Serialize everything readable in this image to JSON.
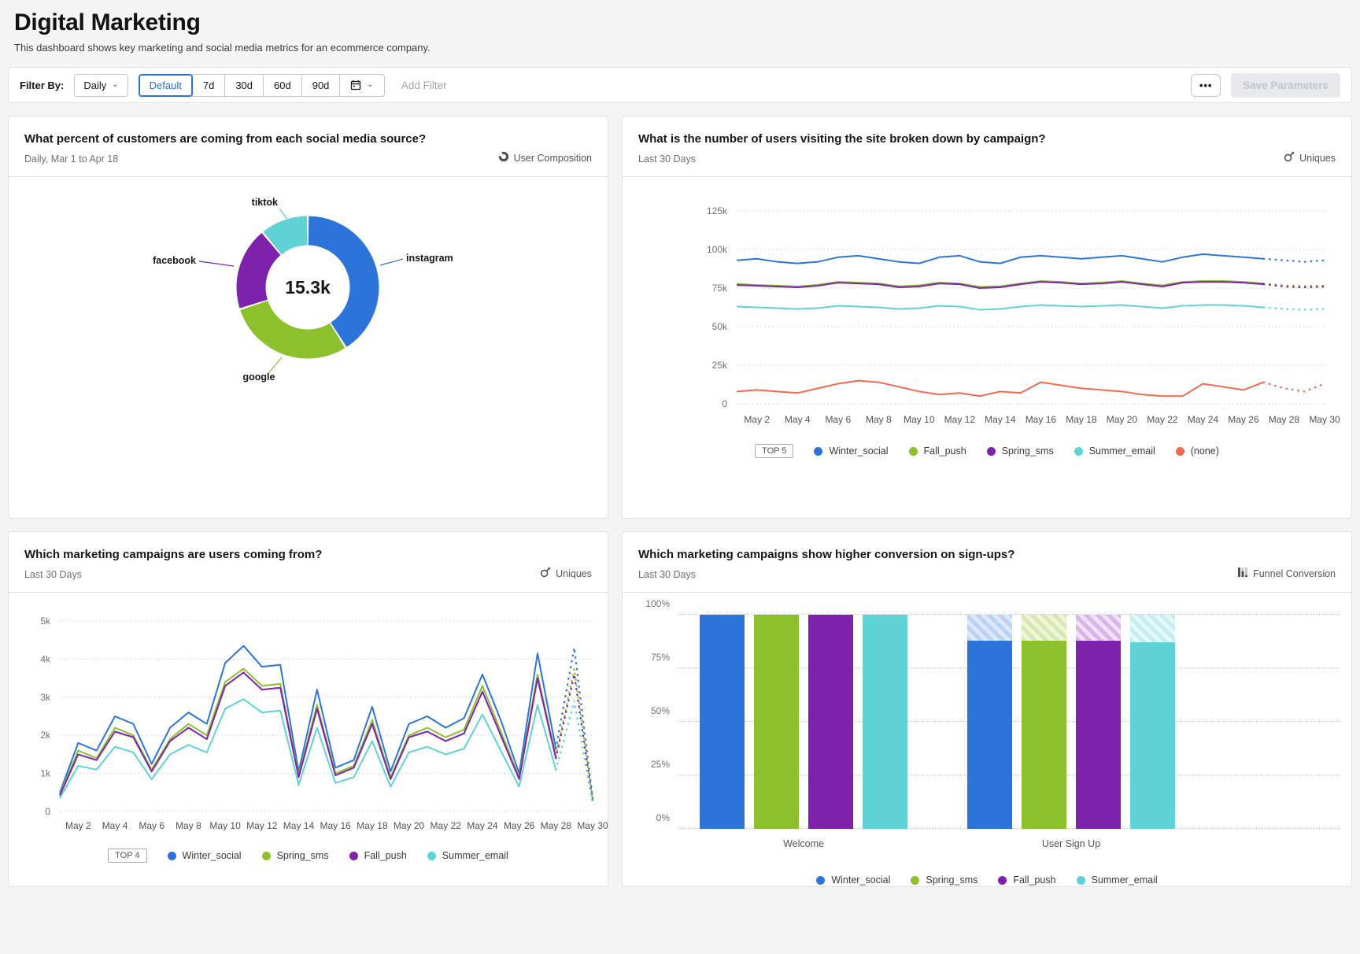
{
  "page": {
    "title": "Digital Marketing",
    "subtitle": "This dashboard shows key marketing and social media metrics for an ecommerce company."
  },
  "filter_bar": {
    "label": "Filter By:",
    "interval_dropdown_value": "Daily",
    "range_buttons": [
      "Default",
      "7d",
      "30d",
      "60d",
      "90d"
    ],
    "active_range": "Default",
    "calendar_icon": "calendar-icon",
    "add_filter_label": "Add Filter",
    "more_button_label": "•••",
    "save_button_label": "Save Parameters"
  },
  "colors": {
    "blue": "#2d74da",
    "green": "#8cc02d",
    "purple": "#7e22ad",
    "teal": "#5ed2d4",
    "coral": "#f4684e",
    "active_accent": "#2d6fdd"
  },
  "chart_data": [
    {
      "id": "social-source-donut",
      "type": "pie",
      "title": "What percent of customers are coming from each social media source?",
      "subtitle": "Daily, Mar 1 to Apr 18",
      "badge": "User Composition",
      "badge_icon": "user-composition-icon",
      "center_total": "15.3k",
      "segments": [
        {
          "label": "instagram",
          "percent": 41,
          "color": "#2d74da"
        },
        {
          "label": "google",
          "percent": 29,
          "color": "#8cc02d"
        },
        {
          "label": "facebook",
          "percent": 19,
          "color": "#7e22ad"
        },
        {
          "label": "tiktok",
          "percent": 11,
          "color": "#5ed2d4"
        }
      ]
    },
    {
      "id": "visits-by-campaign",
      "type": "line",
      "title": "What is the number of users visiting the site broken down by campaign?",
      "subtitle": "Last 30 Days",
      "badge": "Uniques",
      "badge_icon": "uniques-icon",
      "top_label": "TOP 5",
      "unit": "k users",
      "ylim": [
        0,
        125
      ],
      "y_ticks": [
        {
          "label": "125k",
          "value": 125
        },
        {
          "label": "100k",
          "value": 100
        },
        {
          "label": "75k",
          "value": 75
        },
        {
          "label": "50k",
          "value": 50
        },
        {
          "label": "25k",
          "value": 25
        },
        {
          "label": "0",
          "value": 0
        }
      ],
      "x_tick_labels": [
        "May 2",
        "May 4",
        "May 6",
        "May 8",
        "May 10",
        "May 12",
        "May 14",
        "May 16",
        "May 18",
        "May 20",
        "May 22",
        "May 24",
        "May 26",
        "May 28",
        "May 30"
      ],
      "dotted_tail_points": 3,
      "series": [
        {
          "name": "Winter_social",
          "color": "#2d74da",
          "values": [
            93,
            94,
            92,
            91,
            92,
            95,
            96,
            94,
            92,
            91,
            95,
            96,
            92,
            91,
            95,
            96,
            95,
            94,
            95,
            96,
            94,
            92,
            95,
            97,
            96,
            95,
            94,
            93,
            92,
            93
          ]
        },
        {
          "name": "Fall_push",
          "color": "#8cc02d",
          "values": [
            77.8,
            77,
            76.6,
            76,
            77.2,
            79,
            78.6,
            78,
            76.2,
            76.8,
            78.6,
            78,
            75.8,
            76.2,
            78,
            79.6,
            79,
            78,
            78.6,
            79.6,
            78,
            76.8,
            79,
            79.6,
            79.6,
            79,
            78,
            76.8,
            76.2,
            76.6
          ]
        },
        {
          "name": "Spring_sms",
          "color": "#7e22ad",
          "values": [
            77,
            76.5,
            76,
            75.5,
            76.5,
            78.5,
            78,
            77.5,
            75.5,
            76,
            78,
            77.5,
            75,
            75.5,
            77.5,
            79,
            78.5,
            77.5,
            78,
            79,
            77.5,
            76,
            78.5,
            79,
            79,
            78.5,
            77.5,
            76,
            75.5,
            76
          ]
        },
        {
          "name": "Summer_email",
          "color": "#5ed2d4",
          "values": [
            63,
            62.5,
            62,
            61.5,
            62,
            63.5,
            63,
            62.5,
            61.5,
            62,
            63.5,
            63,
            61,
            61.5,
            63,
            64,
            63.5,
            63,
            63.5,
            64,
            63,
            62,
            63.5,
            64,
            64,
            63.5,
            62.5,
            61.5,
            61,
            61.5
          ]
        },
        {
          "name": "(none)",
          "color": "#f4684e",
          "values": [
            8,
            9,
            8,
            7,
            10,
            13,
            15,
            14,
            11,
            8,
            6,
            7,
            5,
            8,
            7,
            14,
            12,
            10,
            9,
            8,
            6,
            5,
            5,
            13,
            11,
            9,
            14,
            10,
            8,
            13
          ]
        }
      ]
    },
    {
      "id": "campaign-uniques",
      "type": "line",
      "title": "Which marketing campaigns are users coming from?",
      "subtitle": "Last 30 Days",
      "badge": "Uniques",
      "badge_icon": "uniques-icon",
      "top_label": "TOP 4",
      "unit": "k users",
      "ylim": [
        0,
        5
      ],
      "y_ticks": [
        {
          "label": "5k",
          "value": 5
        },
        {
          "label": "4k",
          "value": 4
        },
        {
          "label": "3k",
          "value": 3
        },
        {
          "label": "2k",
          "value": 2
        },
        {
          "label": "1k",
          "value": 1
        },
        {
          "label": "0",
          "value": 0
        }
      ],
      "x_tick_labels": [
        "May 2",
        "May 4",
        "May 6",
        "May 8",
        "May 10",
        "May 12",
        "May 14",
        "May 16",
        "May 18",
        "May 20",
        "May 22",
        "May 24",
        "May 26",
        "May 28",
        "May 30"
      ],
      "dotted_tail_points": 2,
      "series": [
        {
          "name": "Winter_social",
          "color": "#2d74da",
          "values": [
            0.5,
            1.8,
            1.6,
            2.5,
            2.3,
            1.25,
            2.2,
            2.6,
            2.3,
            3.9,
            4.35,
            3.8,
            3.85,
            1.05,
            3.2,
            1.15,
            1.35,
            2.75,
            1.05,
            2.3,
            2.5,
            2.2,
            2.45,
            3.6,
            2.4,
            1.0,
            4.15,
            1.65,
            4.3,
            0.35
          ]
        },
        {
          "name": "Spring_sms",
          "color": "#8cc02d",
          "values": [
            0.45,
            1.6,
            1.4,
            2.2,
            2.0,
            1.1,
            1.9,
            2.3,
            2.0,
            3.4,
            3.75,
            3.3,
            3.35,
            0.95,
            2.8,
            1.0,
            1.2,
            2.4,
            0.9,
            2.0,
            2.2,
            1.95,
            2.15,
            3.3,
            2.1,
            0.9,
            3.6,
            1.45,
            3.75,
            0.3
          ]
        },
        {
          "name": "Fall_push",
          "color": "#7e22ad",
          "values": [
            0.42,
            1.5,
            1.35,
            2.1,
            1.95,
            1.05,
            1.85,
            2.2,
            1.9,
            3.3,
            3.65,
            3.2,
            3.25,
            0.9,
            2.7,
            0.95,
            1.15,
            2.3,
            0.85,
            1.95,
            2.1,
            1.85,
            2.05,
            3.15,
            2.0,
            0.85,
            3.5,
            1.4,
            3.6,
            0.28
          ]
        },
        {
          "name": "Summer_email",
          "color": "#5ed2d4",
          "values": [
            0.35,
            1.2,
            1.1,
            1.7,
            1.55,
            0.85,
            1.5,
            1.75,
            1.55,
            2.7,
            2.95,
            2.6,
            2.65,
            0.7,
            2.2,
            0.75,
            0.9,
            1.85,
            0.65,
            1.55,
            1.7,
            1.5,
            1.65,
            2.55,
            1.6,
            0.65,
            2.8,
            1.1,
            2.9,
            0.2
          ]
        }
      ]
    },
    {
      "id": "funnel-conversion",
      "type": "bar",
      "title": "Which marketing campaigns show higher conversion on sign-ups?",
      "subtitle": "Last 30 Days",
      "badge": "Funnel Conversion",
      "badge_icon": "funnel-conversion-icon",
      "groups": [
        "Welcome",
        "User Sign Up"
      ],
      "ylim": [
        0,
        100
      ],
      "y_ticks": [
        {
          "label": "100%",
          "value": 100
        },
        {
          "label": "75%",
          "value": 75
        },
        {
          "label": "50%",
          "value": 50
        },
        {
          "label": "25%",
          "value": 25
        },
        {
          "label": "0%",
          "value": 0
        }
      ],
      "series": [
        {
          "name": "Winter_social",
          "color": "#2d74da",
          "hatch_colors": [
            "#b9d1f2",
            "#dde9fb"
          ],
          "solid_pct": [
            100,
            88
          ]
        },
        {
          "name": "Spring_sms",
          "color": "#8cc02d",
          "hatch_colors": [
            "#d9e8ae",
            "#eef5d9"
          ],
          "solid_pct": [
            100,
            88
          ]
        },
        {
          "name": "Fall_push",
          "color": "#7e22ad",
          "hatch_colors": [
            "#d9b4ea",
            "#efe2f6"
          ],
          "solid_pct": [
            100,
            88
          ]
        },
        {
          "name": "Summer_email",
          "color": "#5ed2d4",
          "hatch_colors": [
            "#c2eef0",
            "#e4f8f9"
          ],
          "solid_pct": [
            100,
            87
          ]
        }
      ]
    }
  ]
}
